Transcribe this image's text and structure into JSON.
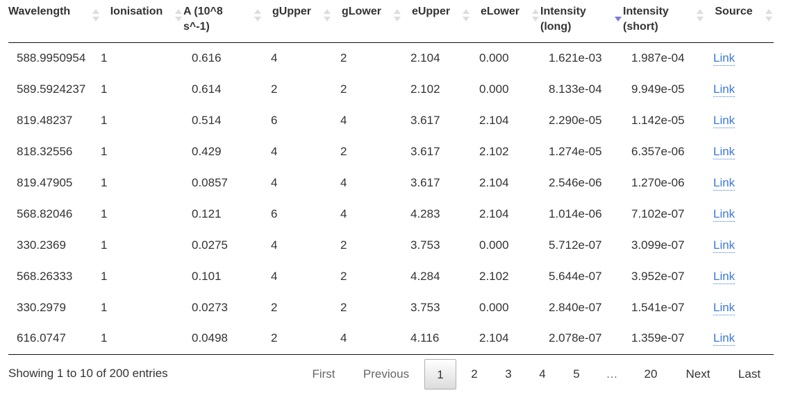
{
  "table": {
    "columns": [
      {
        "label": "Wavelength"
      },
      {
        "label": "Ionisation"
      },
      {
        "label": "A (10^8 s^-1)"
      },
      {
        "label": "gUpper"
      },
      {
        "label": "gLower"
      },
      {
        "label": "eUpper"
      },
      {
        "label": "eLower"
      },
      {
        "label": "Intensity (long)",
        "sorted": "descending"
      },
      {
        "label": "Intensity (short)"
      },
      {
        "label": "Source"
      }
    ],
    "rows": [
      [
        "588.9950954",
        "1",
        "0.616",
        "4",
        "2",
        "2.104",
        "0.000",
        "1.621e-03",
        "1.987e-04",
        "Link"
      ],
      [
        "589.5924237",
        "1",
        "0.614",
        "2",
        "2",
        "2.102",
        "0.000",
        "8.133e-04",
        "9.949e-05",
        "Link"
      ],
      [
        "819.48237",
        "1",
        "0.514",
        "6",
        "4",
        "3.617",
        "2.104",
        "2.290e-05",
        "1.142e-05",
        "Link"
      ],
      [
        "818.32556",
        "1",
        "0.429",
        "4",
        "2",
        "3.617",
        "2.102",
        "1.274e-05",
        "6.357e-06",
        "Link"
      ],
      [
        "819.47905",
        "1",
        "0.0857",
        "4",
        "4",
        "3.617",
        "2.104",
        "2.546e-06",
        "1.270e-06",
        "Link"
      ],
      [
        "568.82046",
        "1",
        "0.121",
        "6",
        "4",
        "4.283",
        "2.104",
        "1.014e-06",
        "7.102e-07",
        "Link"
      ],
      [
        "330.2369",
        "1",
        "0.0275",
        "4",
        "2",
        "3.753",
        "0.000",
        "5.712e-07",
        "3.099e-07",
        "Link"
      ],
      [
        "568.26333",
        "1",
        "0.101",
        "4",
        "2",
        "4.284",
        "2.102",
        "5.644e-07",
        "3.952e-07",
        "Link"
      ],
      [
        "330.2979",
        "1",
        "0.0273",
        "2",
        "2",
        "3.753",
        "0.000",
        "2.840e-07",
        "1.541e-07",
        "Link"
      ],
      [
        "616.0747",
        "1",
        "0.0498",
        "2",
        "4",
        "4.116",
        "2.104",
        "2.078e-07",
        "1.359e-07",
        "Link"
      ]
    ]
  },
  "info": "Showing 1 to 10 of 200 entries",
  "pagination": {
    "first": "First",
    "previous": "Previous",
    "pages": [
      "1",
      "2",
      "3",
      "4",
      "5"
    ],
    "current": "1",
    "ellipsis": "…",
    "last_page": "20",
    "next": "Next",
    "last": "Last"
  },
  "colors": {
    "link": "#3c78d8",
    "sort_active": "#7b7bdb"
  }
}
